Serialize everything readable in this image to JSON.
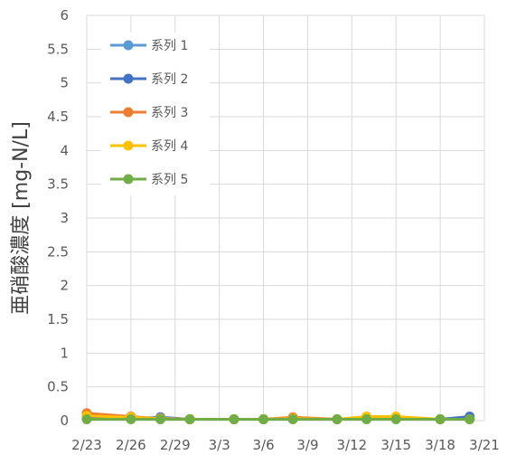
{
  "chart_data": {
    "type": "line",
    "title": "",
    "xlabel": "",
    "ylabel": "亜硝酸濃度 [mg-N/L]",
    "ylim": [
      0,
      6
    ],
    "yticks": [
      "0",
      "0.5",
      "1",
      "1.5",
      "2",
      "2.5",
      "3",
      "3.5",
      "4",
      "4.5",
      "5",
      "5.5",
      "6"
    ],
    "xlim": [
      "2024-02-23",
      "2024-03-21"
    ],
    "xticks": [
      "2/23",
      "2/26",
      "2/29",
      "3/3",
      "3/6",
      "3/9",
      "3/12",
      "3/15",
      "3/18",
      "3/21"
    ],
    "grid": true,
    "legend_position": "top-left",
    "series": [
      {
        "name": "系列 1",
        "color": "#5b9bd5",
        "points": [
          [
            "2024-02-23",
            0.05
          ],
          [
            "2024-02-26",
            0.04
          ],
          [
            "2024-02-28",
            0.04
          ],
          [
            "2024-03-01",
            0.02
          ],
          [
            "2024-03-04",
            0.02
          ],
          [
            "2024-03-06",
            0.02
          ],
          [
            "2024-03-08",
            0.03
          ],
          [
            "2024-03-11",
            0.02
          ],
          [
            "2024-03-13",
            0.03
          ],
          [
            "2024-03-15",
            0.03
          ],
          [
            "2024-03-18",
            0.02
          ],
          [
            "2024-03-20",
            0.03
          ]
        ]
      },
      {
        "name": "系列 2",
        "color": "#4472c4",
        "points": [
          [
            "2024-02-23",
            0.06
          ],
          [
            "2024-02-26",
            0.03
          ],
          [
            "2024-02-28",
            0.05
          ],
          [
            "2024-03-01",
            0.02
          ],
          [
            "2024-03-04",
            0.02
          ],
          [
            "2024-03-06",
            0.02
          ],
          [
            "2024-03-08",
            0.03
          ],
          [
            "2024-03-11",
            0.02
          ],
          [
            "2024-03-13",
            0.03
          ],
          [
            "2024-03-15",
            0.03
          ],
          [
            "2024-03-18",
            0.02
          ],
          [
            "2024-03-20",
            0.06
          ]
        ]
      },
      {
        "name": "系列 3",
        "color": "#ed7d31",
        "points": [
          [
            "2024-02-23",
            0.11
          ],
          [
            "2024-02-26",
            0.06
          ],
          [
            "2024-02-28",
            0.03
          ],
          [
            "2024-03-01",
            0.02
          ],
          [
            "2024-03-04",
            0.02
          ],
          [
            "2024-03-06",
            0.02
          ],
          [
            "2024-03-08",
            0.05
          ],
          [
            "2024-03-11",
            0.02
          ],
          [
            "2024-03-13",
            0.05
          ],
          [
            "2024-03-15",
            0.05
          ],
          [
            "2024-03-18",
            0.02
          ],
          [
            "2024-03-20",
            0.02
          ]
        ]
      },
      {
        "name": "系列 4",
        "color": "#ffc000",
        "points": [
          [
            "2024-02-23",
            0.07
          ],
          [
            "2024-02-26",
            0.05
          ],
          [
            "2024-02-28",
            0.03
          ],
          [
            "2024-03-01",
            0.02
          ],
          [
            "2024-03-04",
            0.02
          ],
          [
            "2024-03-06",
            0.02
          ],
          [
            "2024-03-08",
            0.03
          ],
          [
            "2024-03-11",
            0.02
          ],
          [
            "2024-03-13",
            0.06
          ],
          [
            "2024-03-15",
            0.06
          ],
          [
            "2024-03-18",
            0.02
          ],
          [
            "2024-03-20",
            0.02
          ]
        ]
      },
      {
        "name": "系列 5",
        "color": "#70ad47",
        "points": [
          [
            "2024-02-23",
            0.02
          ],
          [
            "2024-02-26",
            0.02
          ],
          [
            "2024-02-28",
            0.02
          ],
          [
            "2024-03-01",
            0.02
          ],
          [
            "2024-03-04",
            0.02
          ],
          [
            "2024-03-06",
            0.02
          ],
          [
            "2024-03-08",
            0.02
          ],
          [
            "2024-03-11",
            0.02
          ],
          [
            "2024-03-13",
            0.02
          ],
          [
            "2024-03-15",
            0.02
          ],
          [
            "2024-03-18",
            0.02
          ],
          [
            "2024-03-20",
            0.02
          ]
        ]
      }
    ]
  }
}
